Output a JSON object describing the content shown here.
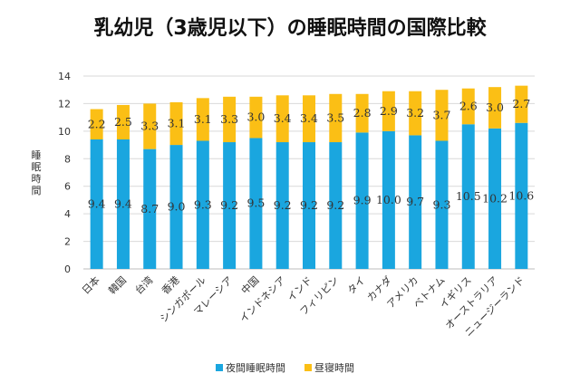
{
  "chart_data": {
    "type": "bar",
    "stacked": true,
    "title": "乳幼児（3歳児以下）の睡眠時間の国際比較",
    "ylabel": "睡眠時間",
    "xlabel": "",
    "ylim": [
      0,
      14
    ],
    "yticks": [
      0,
      2,
      4,
      6,
      8,
      10,
      12,
      14
    ],
    "grid": true,
    "legend_position": "bottom",
    "categories": [
      "日本",
      "韓国",
      "台湾",
      "香港",
      "シンガポール",
      "マレーシア",
      "中国",
      "インドネシア",
      "インド",
      "フィリピン",
      "タイ",
      "カナダ",
      "アメリカ",
      "ベトナム",
      "イギリス",
      "オーストラリア",
      "ニュージーランド"
    ],
    "series": [
      {
        "name": "夜間睡眠時間",
        "color": "#1aa6df",
        "values": [
          9.4,
          9.4,
          8.7,
          9.0,
          9.3,
          9.2,
          9.5,
          9.2,
          9.2,
          9.2,
          9.9,
          10.0,
          9.7,
          9.3,
          10.5,
          10.2,
          10.6
        ]
      },
      {
        "name": "昼寝時間",
        "color": "#fbbf15",
        "values": [
          2.2,
          2.5,
          3.3,
          3.1,
          3.1,
          3.3,
          3.0,
          3.4,
          3.4,
          3.5,
          2.8,
          2.9,
          3.2,
          3.7,
          2.6,
          3.0,
          2.7
        ]
      }
    ]
  }
}
